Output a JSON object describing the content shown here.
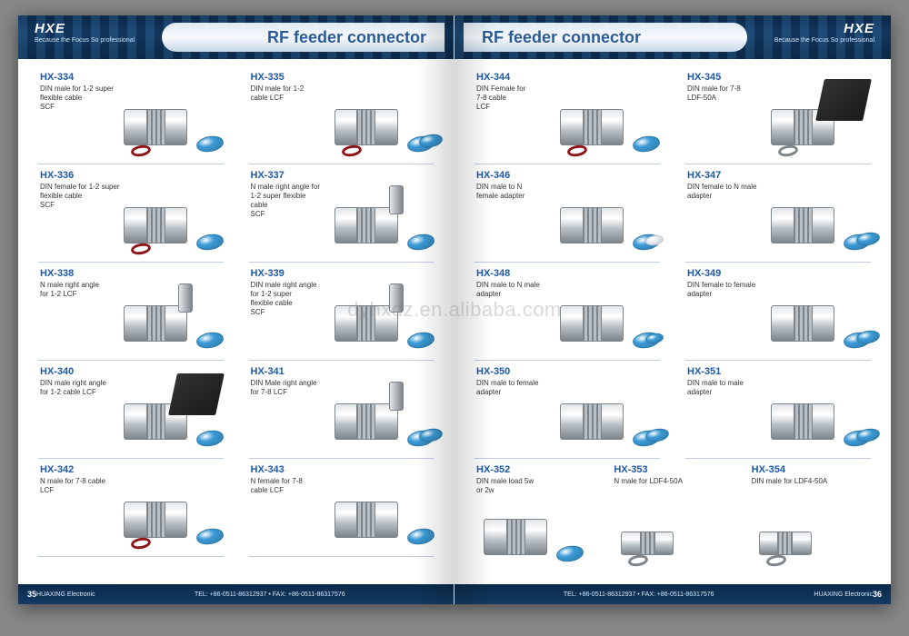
{
  "watermark": "dyhxdz.en.alibaba.com",
  "brand": {
    "logo": "HXE",
    "sub": "HUAXING",
    "tag": "Because the Focus So professional"
  },
  "title": "RF feeder connector",
  "footer": {
    "company": "HUAXING Electronic",
    "contact": "TEL: +86-0511-86312937  •  FAX: +86-0511-86317576",
    "left_page": "35",
    "right_page": "36"
  },
  "colors": {
    "header_deep": "#0b2a4a",
    "accent_blue": "#1e5aa8",
    "cap_blue": "#3c9bd6",
    "cap_blue_dark": "#2b78aa",
    "ring_red": "#8d1418",
    "metal_light": "#e3e6e8",
    "metal_mid": "#b8bfc4",
    "metal_dark": "#7d858b",
    "black_sleeve": "#1a1a1a"
  },
  "left_products": [
    {
      "model": "HX-334",
      "desc": "DIN male for 1-2 super\nflexible cable\nSCF",
      "caps": [
        "blue"
      ],
      "ring": "red",
      "sleeve": false,
      "angle": false
    },
    {
      "model": "HX-335",
      "desc": "DIN male for 1-2\ncable LCF",
      "caps": [
        "blue",
        "blue"
      ],
      "ring": "red",
      "sleeve": false,
      "angle": false
    },
    {
      "model": "HX-336",
      "desc": "DIN female for 1-2 super\nflexible cable\nSCF",
      "caps": [
        "blue"
      ],
      "ring": "red",
      "sleeve": false,
      "angle": false
    },
    {
      "model": "HX-337",
      "desc": "N male right angle for\n1-2 super flexible\ncable\nSCF",
      "caps": [
        "blue"
      ],
      "ring": null,
      "sleeve": false,
      "angle": true
    },
    {
      "model": "HX-338",
      "desc": "N male right angle\nfor 1-2 LCF",
      "caps": [
        "blue"
      ],
      "ring": null,
      "sleeve": false,
      "angle": true
    },
    {
      "model": "HX-339",
      "desc": "DIN male right angle\nfor 1-2 super\nflexible cable\nSCF",
      "caps": [
        "blue"
      ],
      "ring": null,
      "sleeve": false,
      "angle": true
    },
    {
      "model": "HX-340",
      "desc": "DIN male right angle\nfor 1-2 cable LCF",
      "caps": [
        "blue"
      ],
      "ring": null,
      "sleeve": true,
      "angle": true
    },
    {
      "model": "HX-341",
      "desc": "DIN Male right angle\nfor 7-8 LCF",
      "caps": [
        "blue",
        "blue"
      ],
      "ring": null,
      "sleeve": false,
      "angle": true
    },
    {
      "model": "HX-342",
      "desc": "N male for 7-8 cable\nLCF",
      "caps": [
        "blue"
      ],
      "ring": "red",
      "sleeve": false,
      "angle": false
    },
    {
      "model": "HX-343",
      "desc": "N female for 7-8\ncable LCF",
      "caps": [
        "blue"
      ],
      "ring": null,
      "sleeve": false,
      "angle": false
    }
  ],
  "right_products_top": [
    {
      "model": "HX-344",
      "desc": "DIN Female for\n7-8 cable\nLCF",
      "caps": [
        "blue"
      ],
      "ring": "red",
      "sleeve": false,
      "angle": false
    },
    {
      "model": "HX-345",
      "desc": "DIN male for 7-8\nLDF-50A",
      "caps": [],
      "ring": "metal",
      "sleeve": true,
      "angle": false
    },
    {
      "model": "HX-346",
      "desc": "DIN male to N\nfemale adapter",
      "caps": [
        "blue",
        "white"
      ],
      "ring": null,
      "sleeve": false,
      "angle": false
    },
    {
      "model": "HX-347",
      "desc": "DIN female to N male\nadapter",
      "caps": [
        "blue",
        "blue"
      ],
      "ring": null,
      "sleeve": false,
      "angle": false
    },
    {
      "model": "HX-348",
      "desc": "DIN male to N male\nadapter",
      "caps": [
        "blue",
        "blue_small"
      ],
      "ring": null,
      "sleeve": false,
      "angle": false
    },
    {
      "model": "HX-349",
      "desc": "DIN female to female\nadapter",
      "caps": [
        "blue",
        "blue"
      ],
      "ring": null,
      "sleeve": false,
      "angle": false
    },
    {
      "model": "HX-350",
      "desc": "DIN male to female\nadapter",
      "caps": [
        "blue",
        "blue"
      ],
      "ring": null,
      "sleeve": false,
      "angle": false
    },
    {
      "model": "HX-351",
      "desc": "DIN male to male\nadapter",
      "caps": [
        "blue",
        "blue"
      ],
      "ring": null,
      "sleeve": false,
      "angle": false
    }
  ],
  "right_products_bottom": [
    {
      "model": "HX-352",
      "desc": "DIN male load 5w\nor  2w",
      "caps": [
        "blue"
      ],
      "ring": null,
      "sleeve": false,
      "angle": false
    },
    {
      "model": "HX-353",
      "desc": "N male for LDF4-50A",
      "caps": [],
      "ring": "metal",
      "sleeve": false,
      "angle": false,
      "small": true
    },
    {
      "model": "HX-354",
      "desc": "DIN male for LDF4-50A",
      "caps": [],
      "ring": "metal",
      "sleeve": false,
      "angle": false,
      "small": true
    }
  ]
}
